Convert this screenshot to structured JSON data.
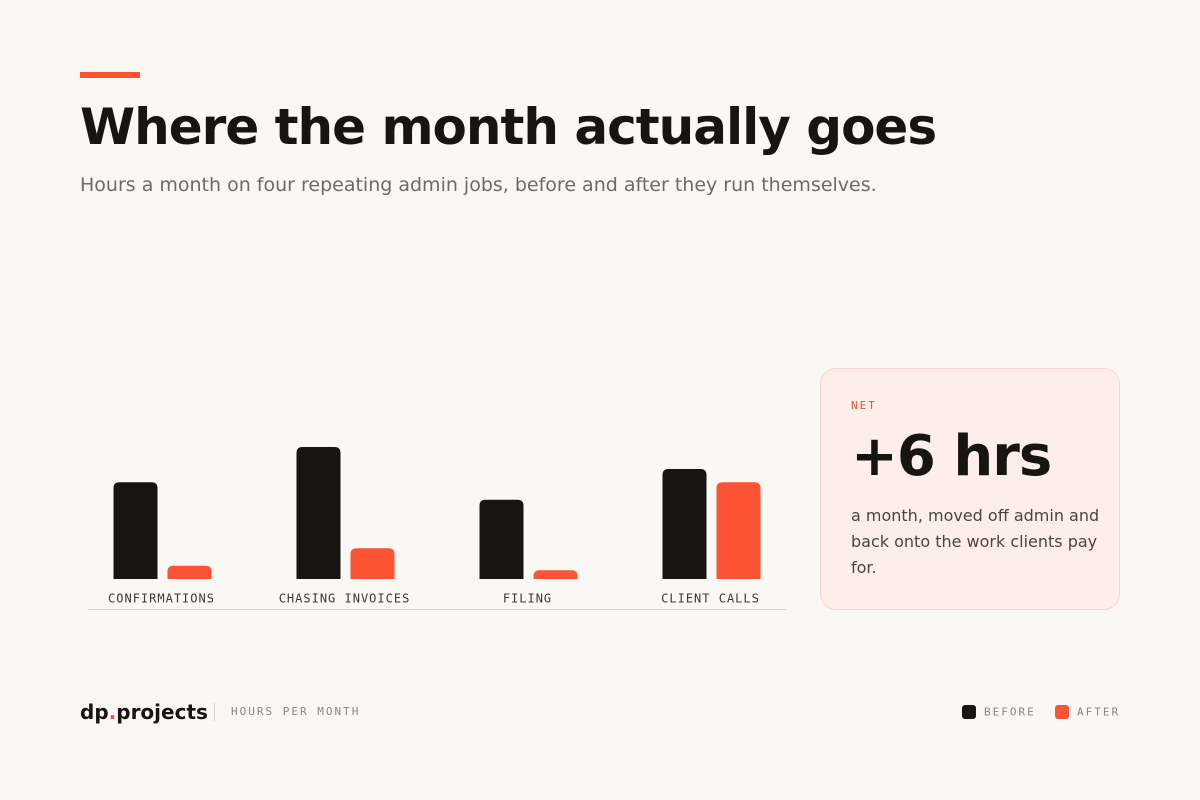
{
  "header": {
    "title": "Where the month actually goes",
    "subtitle": "Hours a month on four repeating admin jobs, before and after they run themselves."
  },
  "chart_data": {
    "type": "bar",
    "categories": [
      "CONFIRMATIONS",
      "CHASING INVOICES",
      "FILING",
      "CLIENT CALLS"
    ],
    "series": [
      {
        "name": "BEFORE",
        "color": "#17150f",
        "values": [
          2.2,
          3.0,
          1.8,
          2.5
        ]
      },
      {
        "name": "AFTER",
        "color": "#fb5334",
        "values": [
          0.3,
          0.7,
          0.2,
          2.2
        ]
      }
    ],
    "ylim": [
      0,
      3
    ],
    "unit_label": "HOURS PER MONTH"
  },
  "card": {
    "label": "NET",
    "value": "+6 hrs",
    "description": "a month, moved off admin and back onto the work clients pay for."
  },
  "footer": {
    "brand": [
      "dp",
      ".",
      "projects"
    ]
  }
}
